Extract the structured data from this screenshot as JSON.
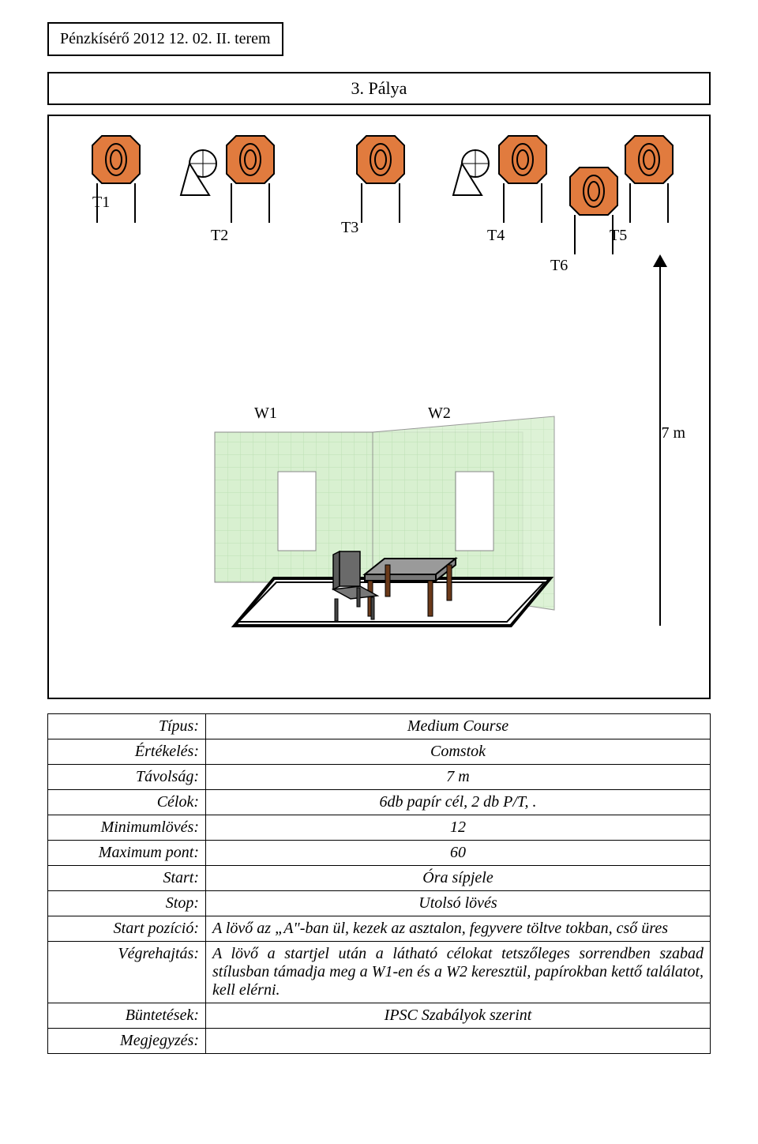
{
  "header": "Pénzkísérő 2012 12. 02. II. terem",
  "title": "3. Pálya",
  "diagram": {
    "targets": {
      "t1": "T1",
      "t2": "T2",
      "t3": "T3",
      "t4": "T4",
      "t5": "T5",
      "t6": "T6"
    },
    "windows": {
      "w1": "W1",
      "w2": "W2"
    },
    "distance": "7 m",
    "colors": {
      "target_fill": "#e17b3e",
      "target_stroke": "#000000",
      "wall_fill": "#d8f0d0",
      "wall_grid": "#bde0b4",
      "window_fill": "#ffffff",
      "floor_fill": "#ffffff",
      "floor_stroke": "#000000",
      "table_top": "#9a9a9a",
      "table_leg": "#6b3a1a",
      "chair_back": "#5a5a5a",
      "chair_seat": "#777777",
      "popper_fill": "#ffffff"
    }
  },
  "spec": {
    "rows": [
      {
        "label": "Típus:",
        "value": "Medium Course",
        "align": "center"
      },
      {
        "label": "Értékelés:",
        "value": "Comstok",
        "align": "center"
      },
      {
        "label": "Távolság:",
        "value": "7 m",
        "align": "center"
      },
      {
        "label": "Célok:",
        "value": "6db papír cél, 2 db P/T, .",
        "align": "center"
      },
      {
        "label": "Minimumlövés:",
        "value": "12",
        "align": "center"
      },
      {
        "label": "Maximum pont:",
        "value": "60",
        "align": "center"
      },
      {
        "label": "Start:",
        "value": "Óra sípjele",
        "align": "center"
      },
      {
        "label": "Stop:",
        "value": "Utolsó lövés",
        "align": "center"
      },
      {
        "label": "Start pozíció:",
        "value": "A lövő az „A\"-ban  ül, kezek az asztalon, fegyvere töltve tokban, cső üres",
        "align": "justify"
      },
      {
        "label": "Végrehajtás:",
        "value": "A lövő a startjel után a látható célokat tetszőleges sorrendben szabad stílusban támadja meg a W1-en és a W2 keresztül, papírokban kettő találatot, kell elérni.",
        "align": "justify"
      },
      {
        "label": "Büntetések:",
        "value": "IPSC Szabályok szerint",
        "align": "center"
      },
      {
        "label": "Megjegyzés:",
        "value": "",
        "align": "center"
      }
    ]
  }
}
